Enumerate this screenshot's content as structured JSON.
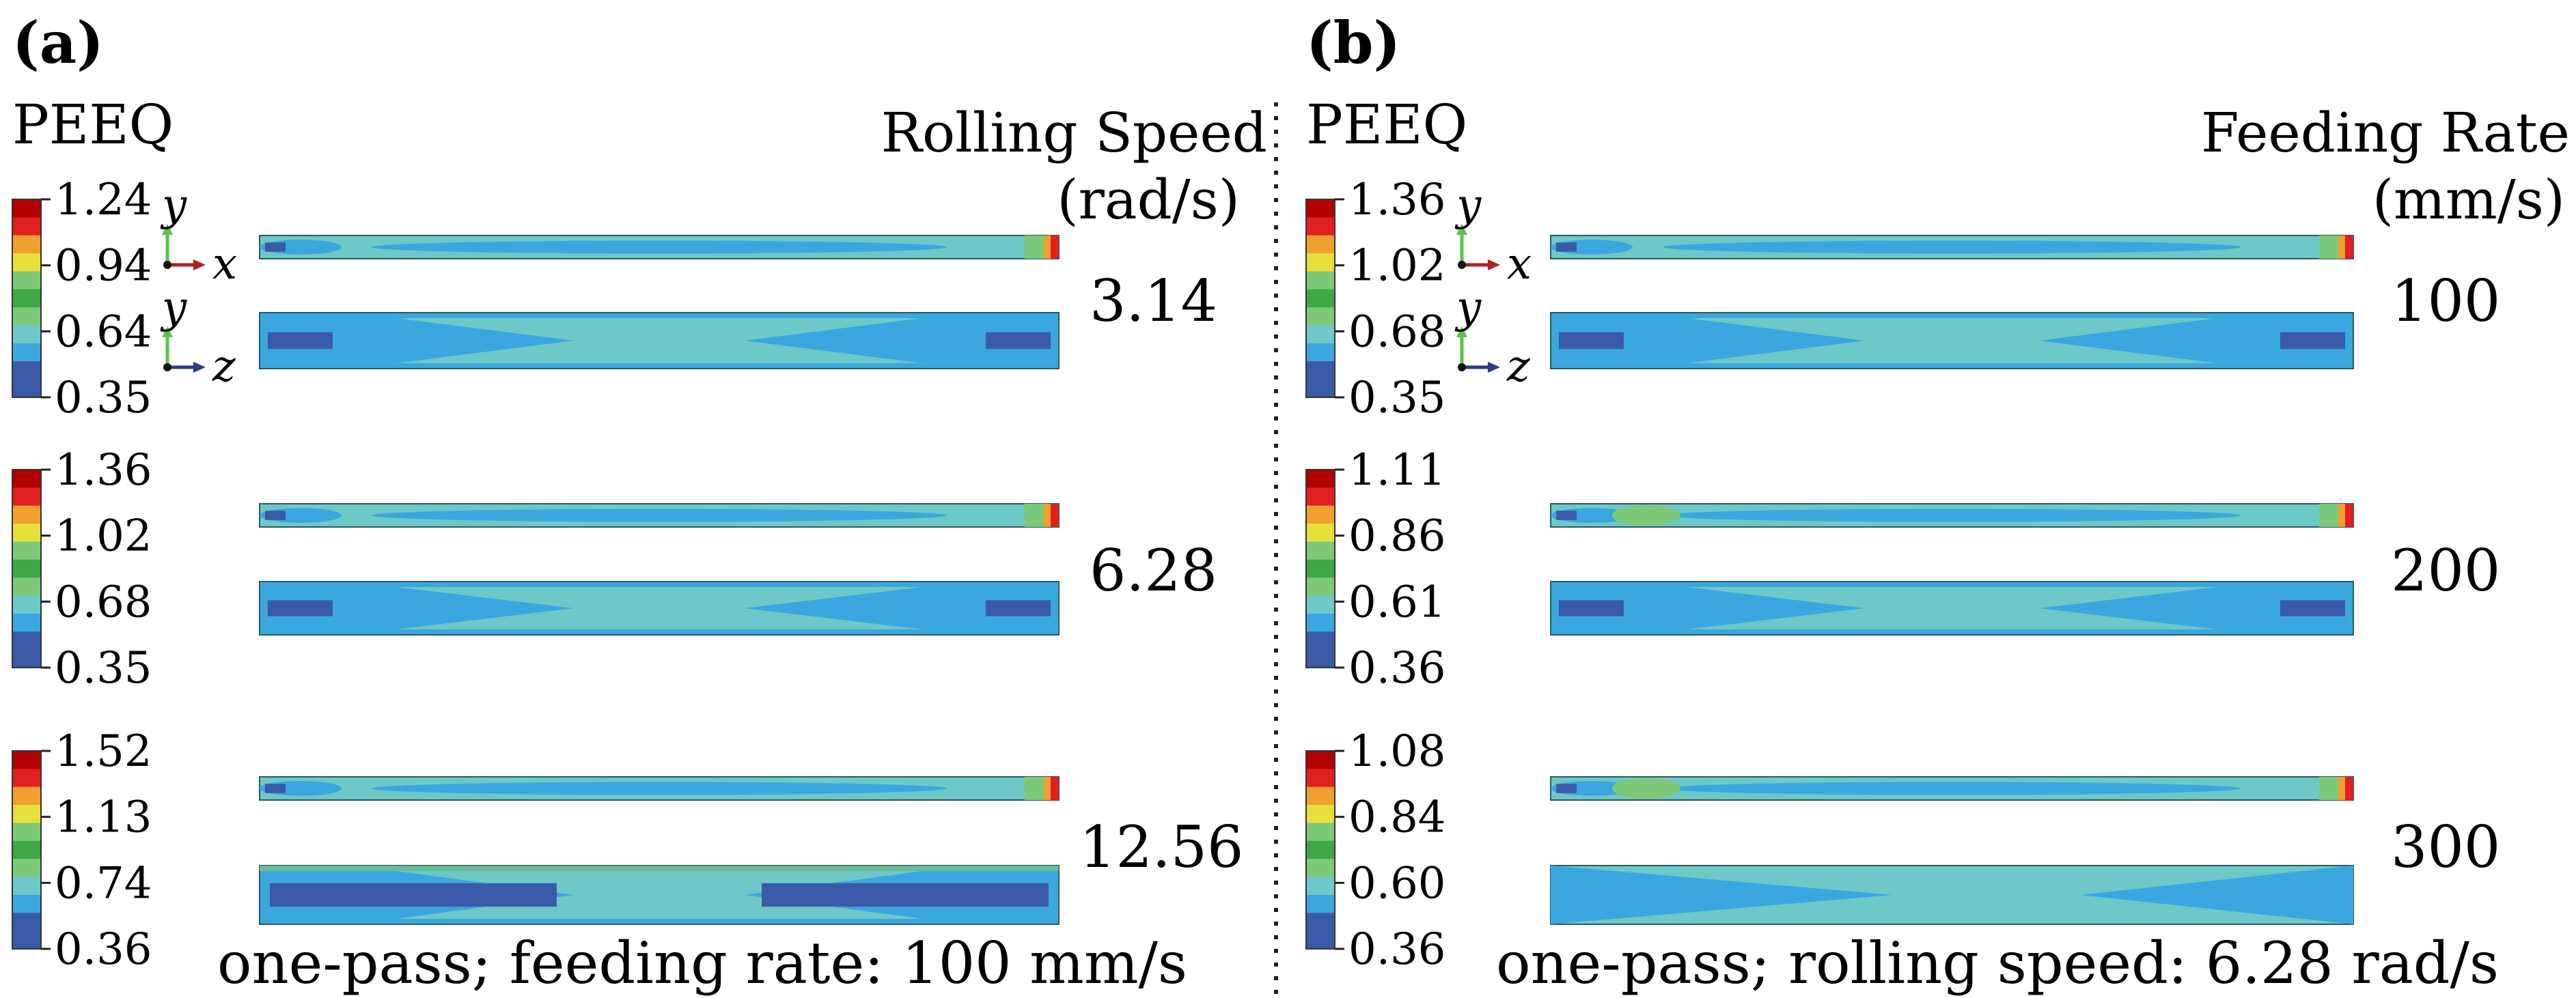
{
  "colors": {
    "dark_blue": "#3a5aa8",
    "blue": "#3aa7e0",
    "cyan": "#6fc8c8",
    "light_green": "#7ec87a",
    "green": "#3da844",
    "yellow": "#e8e03a",
    "orange": "#f0a030",
    "red": "#e02020",
    "dark_red": "#b00000",
    "axis_y": "#5cc24a",
    "axis_x": "#b02020",
    "axis_z": "#2a3a8a"
  },
  "panels": [
    {
      "letter": "(a)",
      "legend_title": "PEEQ",
      "param_title_line1": "Rolling Speed",
      "param_title_line2": "(rad/s)",
      "footer": "one-pass; feeding rate: 100 mm/s",
      "rows": [
        {
          "value": "3.14",
          "ticks": [
            "1.24",
            "0.94",
            "0.64",
            "0.35"
          ]
        },
        {
          "value": "6.28",
          "ticks": [
            "1.36",
            "1.02",
            "0.68",
            "0.35"
          ]
        },
        {
          "value": "12.56",
          "ticks": [
            "1.52",
            "1.13",
            "0.74",
            "0.36"
          ]
        }
      ]
    },
    {
      "letter": "(b)",
      "legend_title": "PEEQ",
      "param_title_line1": "Feeding Rate",
      "param_title_line2": "(mm/s)",
      "footer": "one-pass; rolling speed: 6.28 rad/s",
      "rows": [
        {
          "value": "100",
          "ticks": [
            "1.36",
            "1.02",
            "0.68",
            "0.35"
          ]
        },
        {
          "value": "200",
          "ticks": [
            "1.11",
            "0.86",
            "0.61",
            "0.36"
          ]
        },
        {
          "value": "300",
          "ticks": [
            "1.08",
            "0.84",
            "0.60",
            "0.36"
          ]
        }
      ]
    }
  ],
  "axes": {
    "top_view": {
      "vertical": "y",
      "horizontal": "x"
    },
    "side_view": {
      "vertical": "y",
      "horizontal": "z"
    }
  }
}
